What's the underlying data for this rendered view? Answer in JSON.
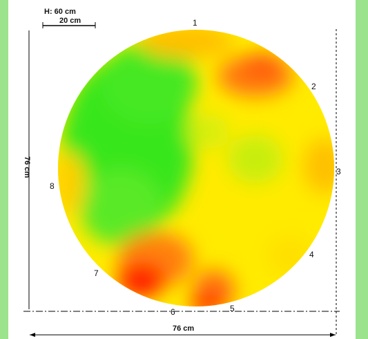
{
  "header": {
    "height_label": "H: 60 cm",
    "scale_label": "20 cm"
  },
  "dimensions": {
    "vertical_label": "76 cm",
    "horizontal_label": "76 cm"
  },
  "sensors": [
    {
      "id": "1",
      "label": "1"
    },
    {
      "id": "2",
      "label": "2"
    },
    {
      "id": "3",
      "label": "3"
    },
    {
      "id": "4",
      "label": "4"
    },
    {
      "id": "5",
      "label": "5"
    },
    {
      "id": "6",
      "label": "6"
    },
    {
      "id": "7",
      "label": "7"
    },
    {
      "id": "8",
      "label": "8"
    }
  ],
  "colors": {
    "background": "#9be38c",
    "green": "#39e61f",
    "yellow": "#ffeb00",
    "orange": "#ff9a10",
    "red": "#ff1a00"
  }
}
